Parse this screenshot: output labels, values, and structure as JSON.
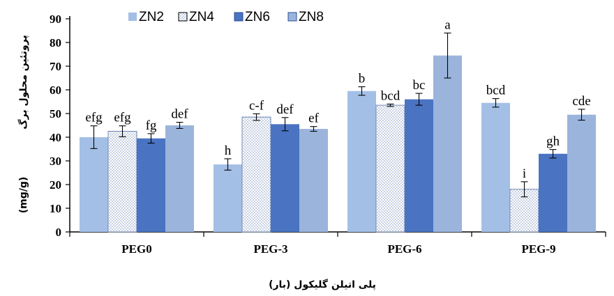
{
  "chart_data": {
    "type": "bar",
    "title": "",
    "xlabel": "پلی اتیلن گلیکول (بار)",
    "ylabel": "پروتئین محلول برگ",
    "ylabel_unit": "(mg/g)",
    "ylim": [
      0,
      90
    ],
    "yticks": [
      0,
      10,
      20,
      30,
      40,
      50,
      60,
      70,
      80,
      90
    ],
    "grid": false,
    "legend_position": "top",
    "categories": [
      "PEG0",
      "PEG-3",
      "PEG-6",
      "PEG-9"
    ],
    "series": [
      {
        "name": "ZN2",
        "color": "#a4bfe6",
        "pattern": "solid",
        "values": [
          40,
          28.5,
          59.5,
          54.5
        ],
        "errors": [
          4.8,
          2.4,
          1.8,
          1.8
        ],
        "labels": [
          "efg",
          "h",
          "b",
          "bcd"
        ]
      },
      {
        "name": "ZN4",
        "color": "#ffffff",
        "pattern": "dotted",
        "values": [
          42.5,
          48.5,
          53.5,
          18
        ],
        "errors": [
          2.3,
          1.4,
          0.5,
          3.2
        ],
        "labels": [
          "efg",
          "c-f",
          "bcd",
          "i"
        ]
      },
      {
        "name": "ZN6",
        "color": "#4a73c2",
        "pattern": "solid",
        "values": [
          39.5,
          45.5,
          56,
          33
        ],
        "errors": [
          2.0,
          2.8,
          2.5,
          1.8
        ],
        "labels": [
          "fg",
          "def",
          "bc",
          "gh"
        ]
      },
      {
        "name": "ZN8",
        "color": "#9bb4dc",
        "pattern": "solid",
        "values": [
          45,
          43.5,
          74.5,
          49.5
        ],
        "errors": [
          1.3,
          1.0,
          9.5,
          2.3
        ],
        "labels": [
          "def",
          "ef",
          "a",
          "cde"
        ]
      }
    ]
  }
}
